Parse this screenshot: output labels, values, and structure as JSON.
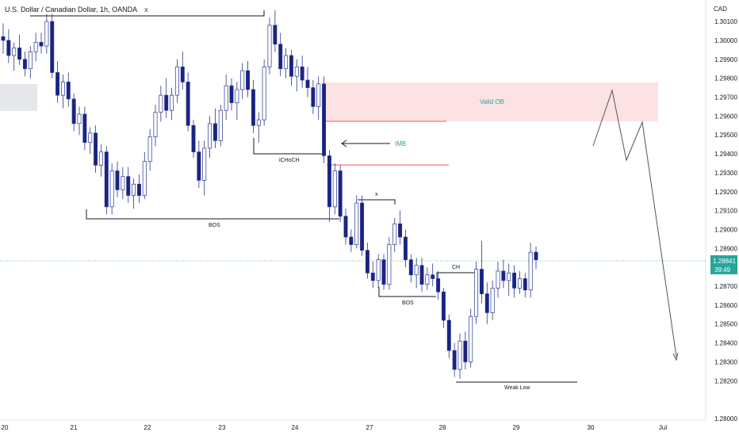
{
  "header": {
    "symbol": "U.S. Dollar / Canadian Dollar, 1h, OANDA"
  },
  "price_axis": {
    "currency": "CAD",
    "ticks": [
      "1.30100",
      "1.30000",
      "1.29900",
      "1.29800",
      "1.29700",
      "1.29600",
      "1.29500",
      "1.29400",
      "1.29300",
      "1.29200",
      "1.29100",
      "1.29000",
      "1.28900",
      "1.28700",
      "1.28600",
      "1.28500",
      "1.28400",
      "1.28300",
      "1.28200",
      "1.28000"
    ],
    "current_price": "1.28841",
    "countdown": "39:49"
  },
  "time_axis": {
    "ticks": [
      "20",
      "21",
      "22",
      "23",
      "24",
      "27",
      "28",
      "29",
      "30",
      "Jul"
    ]
  },
  "annotations": {
    "x_top": "X",
    "valid_ob": "Valid OB",
    "imb": "IMB",
    "ichoch": "iCHoCH",
    "bos_1": "BOS",
    "x_mid": "x",
    "ch": "CH",
    "bos_2": "BOS",
    "weak_low": "Weak Low"
  },
  "colors": {
    "bull_candle": "#ffffff",
    "bull_border": "#283593",
    "bear_candle": "#1a237e",
    "zone_fill": "#fde2e4",
    "zone_line": "#ef5350",
    "teal": "#26a69a",
    "projection": "#555555"
  },
  "chart_data": {
    "type": "candlestick",
    "symbol": "USDCAD",
    "timeframe": "1h",
    "y_range": [
      1.28,
      1.3018
    ],
    "ohlc": [
      [
        1.3002,
        1.3009,
        1.2993,
        1.3
      ],
      [
        1.3,
        1.3006,
        1.2988,
        1.2992
      ],
      [
        1.2992,
        1.2999,
        1.2984,
        1.2996
      ],
      [
        1.2996,
        1.3003,
        1.2987,
        1.299
      ],
      [
        1.299,
        1.2994,
        1.2981,
        1.2985
      ],
      [
        1.2985,
        1.2997,
        1.298,
        1.2994
      ],
      [
        1.2994,
        1.3004,
        1.2989,
        1.2999
      ],
      [
        1.2999,
        1.3004,
        1.2993,
        1.2997
      ],
      [
        1.2997,
        1.3014,
        1.2993,
        1.301
      ],
      [
        1.301,
        1.3014,
        1.298,
        1.2983
      ],
      [
        1.2983,
        1.2989,
        1.2967,
        1.2971
      ],
      [
        1.2971,
        1.2982,
        1.2964,
        1.2978
      ],
      [
        1.2978,
        1.2983,
        1.2965,
        1.2969
      ],
      [
        1.2969,
        1.2972,
        1.2952,
        1.2956
      ],
      [
        1.2956,
        1.2965,
        1.295,
        1.2961
      ],
      [
        1.2961,
        1.2965,
        1.2942,
        1.2946
      ],
      [
        1.2946,
        1.2954,
        1.294,
        1.2951
      ],
      [
        1.2951,
        1.2955,
        1.293,
        1.2934
      ],
      [
        1.2934,
        1.2945,
        1.2928,
        1.2941
      ],
      [
        1.2941,
        1.2944,
        1.2908,
        1.2912
      ],
      [
        1.2912,
        1.2935,
        1.2908,
        1.2931
      ],
      [
        1.2931,
        1.2936,
        1.2917,
        1.2921
      ],
      [
        1.2921,
        1.2933,
        1.2916,
        1.2928
      ],
      [
        1.2928,
        1.2933,
        1.2914,
        1.2918
      ],
      [
        1.2918,
        1.2927,
        1.2911,
        1.2924
      ],
      [
        1.2924,
        1.2929,
        1.2914,
        1.2918
      ],
      [
        1.2918,
        1.2941,
        1.2916,
        1.2936
      ],
      [
        1.2936,
        1.2953,
        1.2931,
        1.2949
      ],
      [
        1.2949,
        1.2966,
        1.2944,
        1.2962
      ],
      [
        1.2962,
        1.2976,
        1.2957,
        1.2971
      ],
      [
        1.2971,
        1.298,
        1.2959,
        1.2963
      ],
      [
        1.2963,
        1.2975,
        1.2958,
        1.2971
      ],
      [
        1.2971,
        1.299,
        1.2967,
        1.2986
      ],
      [
        1.2986,
        1.2994,
        1.2974,
        1.2978
      ],
      [
        1.2978,
        1.2983,
        1.2952,
        1.2955
      ],
      [
        1.2955,
        1.2958,
        1.2938,
        1.2941
      ],
      [
        1.2941,
        1.2947,
        1.2922,
        1.2926
      ],
      [
        1.2926,
        1.2947,
        1.2918,
        1.2943
      ],
      [
        1.2943,
        1.296,
        1.2938,
        1.2956
      ],
      [
        1.2956,
        1.2964,
        1.2943,
        1.2947
      ],
      [
        1.2947,
        1.2966,
        1.2944,
        1.2963
      ],
      [
        1.2963,
        1.2982,
        1.2958,
        1.2976
      ],
      [
        1.2976,
        1.298,
        1.2963,
        1.2967
      ],
      [
        1.2967,
        1.2978,
        1.2958,
        1.2974
      ],
      [
        1.2974,
        1.2988,
        1.2969,
        1.2984
      ],
      [
        1.2984,
        1.2989,
        1.297,
        1.2974
      ],
      [
        1.2974,
        1.2979,
        1.2951,
        1.2955
      ],
      [
        1.2955,
        1.2962,
        1.2946,
        1.2958
      ],
      [
        1.2958,
        1.299,
        1.2955,
        1.2986
      ],
      [
        1.2986,
        1.3012,
        1.2982,
        1.3008
      ],
      [
        1.3008,
        1.3016,
        1.2994,
        1.2998
      ],
      [
        1.2998,
        1.3004,
        1.2981,
        1.2985
      ],
      [
        1.2985,
        1.2996,
        1.298,
        1.2992
      ],
      [
        1.2992,
        1.2995,
        1.2976,
        1.2981
      ],
      [
        1.2981,
        1.299,
        1.2973,
        1.2986
      ],
      [
        1.2986,
        1.2992,
        1.2975,
        1.2979
      ],
      [
        1.2979,
        1.2986,
        1.297,
        1.2975
      ],
      [
        1.2975,
        1.2979,
        1.2961,
        1.2965
      ],
      [
        1.2965,
        1.2981,
        1.2958,
        1.2977
      ],
      [
        1.2977,
        1.2981,
        1.2935,
        1.2939
      ],
      [
        1.2939,
        1.2942,
        1.2904,
        1.2912
      ],
      [
        1.2912,
        1.2935,
        1.2908,
        1.2931
      ],
      [
        1.2931,
        1.2934,
        1.2904,
        1.2907
      ],
      [
        1.2907,
        1.2911,
        1.2892,
        1.2896
      ],
      [
        1.2896,
        1.29,
        1.2888,
        1.2892
      ],
      [
        1.2892,
        1.2918,
        1.289,
        1.2914
      ],
      [
        1.2914,
        1.2918,
        1.2886,
        1.2889
      ],
      [
        1.2889,
        1.2893,
        1.2874,
        1.2877
      ],
      [
        1.2877,
        1.2883,
        1.2869,
        1.2873
      ],
      [
        1.2873,
        1.2887,
        1.2869,
        1.2884
      ],
      [
        1.2884,
        1.2887,
        1.2868,
        1.2871
      ],
      [
        1.2871,
        1.2896,
        1.2868,
        1.2892
      ],
      [
        1.2892,
        1.2906,
        1.2888,
        1.2903
      ],
      [
        1.2903,
        1.291,
        1.2892,
        1.2896
      ],
      [
        1.2896,
        1.29,
        1.288,
        1.2884
      ],
      [
        1.2884,
        1.2887,
        1.2872,
        1.2876
      ],
      [
        1.2876,
        1.2885,
        1.2869,
        1.2881
      ],
      [
        1.2881,
        1.2885,
        1.2867,
        1.2871
      ],
      [
        1.2871,
        1.288,
        1.2868,
        1.2876
      ],
      [
        1.2876,
        1.2882,
        1.287,
        1.2874
      ],
      [
        1.2874,
        1.2878,
        1.2863,
        1.2867
      ],
      [
        1.2867,
        1.2869,
        1.2848,
        1.2852
      ],
      [
        1.2852,
        1.2855,
        1.2832,
        1.2836
      ],
      [
        1.2836,
        1.284,
        1.2822,
        1.2826
      ],
      [
        1.2826,
        1.2845,
        1.2821,
        1.2841
      ],
      [
        1.2841,
        1.2846,
        1.2826,
        1.283
      ],
      [
        1.283,
        1.2858,
        1.2827,
        1.2854
      ],
      [
        1.2854,
        1.2883,
        1.285,
        1.2879
      ],
      [
        1.2879,
        1.2894,
        1.2861,
        1.2866
      ],
      [
        1.2866,
        1.2872,
        1.285,
        1.2856
      ],
      [
        1.2856,
        1.2873,
        1.2852,
        1.2869
      ],
      [
        1.2869,
        1.2883,
        1.2864,
        1.2878
      ],
      [
        1.2878,
        1.2884,
        1.2869,
        1.2873
      ],
      [
        1.2873,
        1.2882,
        1.2865,
        1.2877
      ],
      [
        1.2877,
        1.2881,
        1.2864,
        1.2869
      ],
      [
        1.2869,
        1.2878,
        1.2866,
        1.2874
      ],
      [
        1.2874,
        1.2877,
        1.2864,
        1.2868
      ],
      [
        1.2868,
        1.2893,
        1.2864,
        1.2888
      ],
      [
        1.2888,
        1.2891,
        1.2879,
        1.2884
      ]
    ],
    "title": "U.S. Dollar / Canadian Dollar, 1h, OANDA"
  }
}
